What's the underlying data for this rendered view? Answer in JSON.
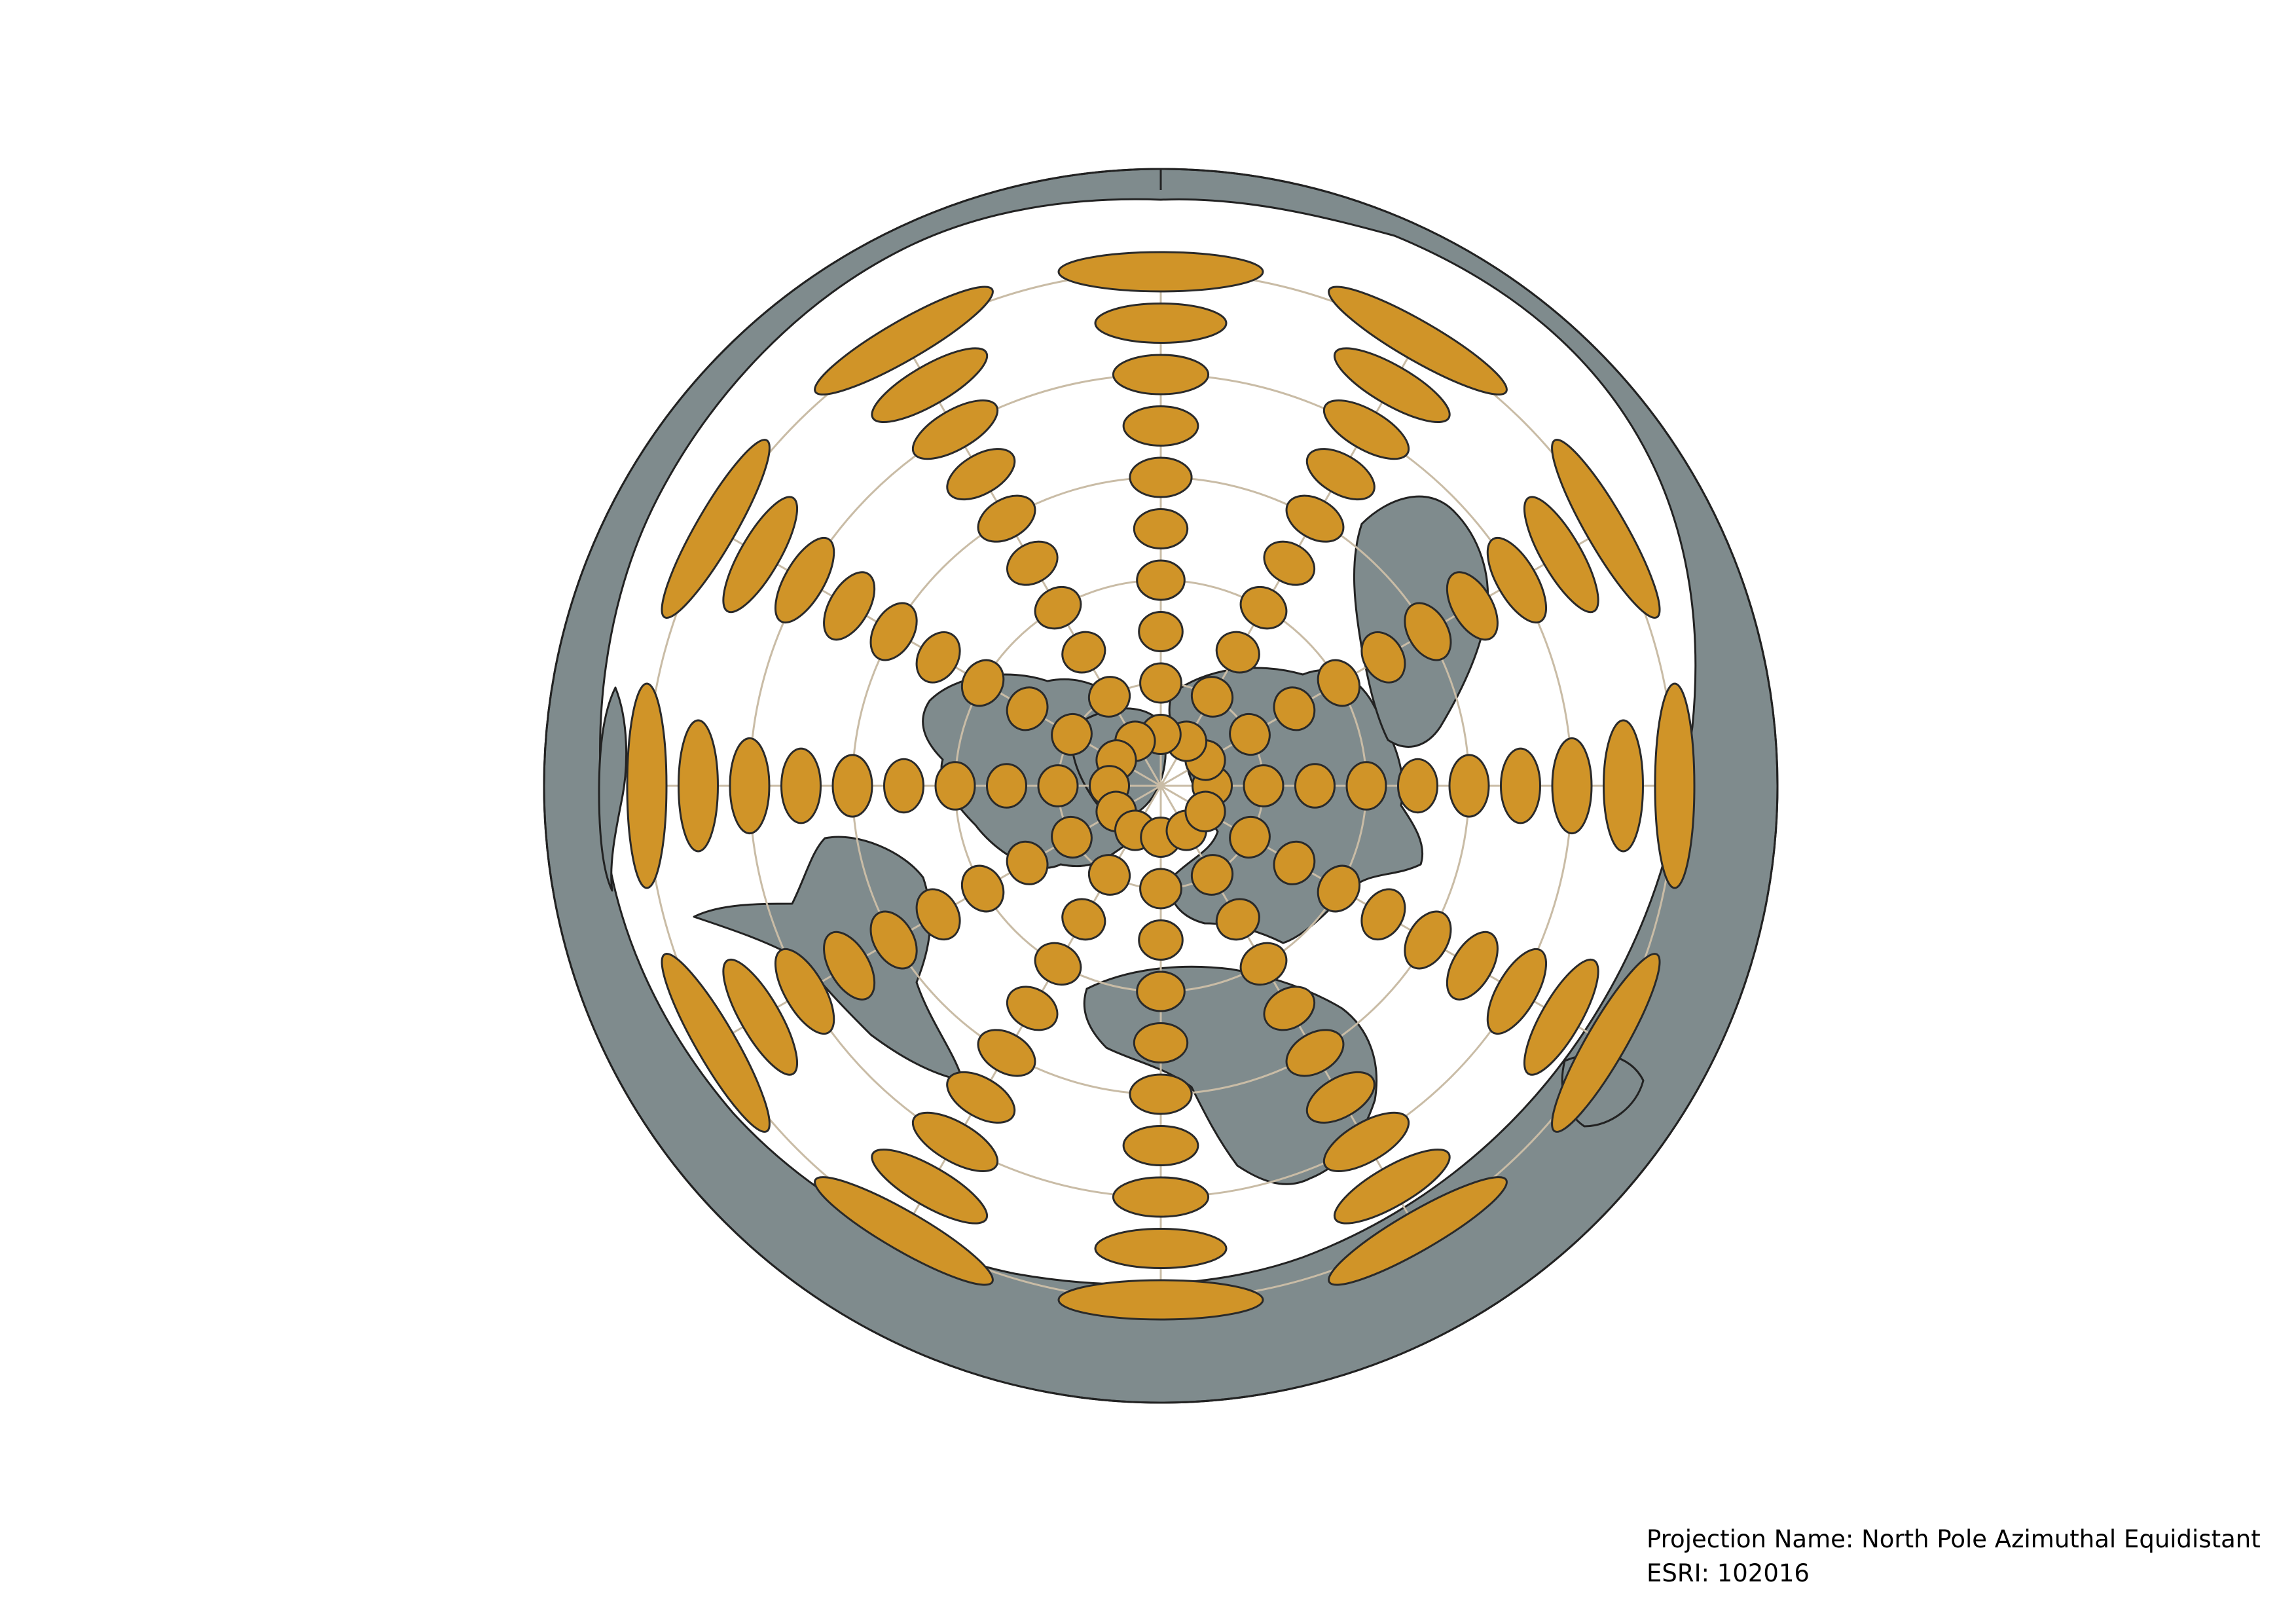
{
  "caption": {
    "projection_line": "Projection Name: North Pole Azimuthal Equidistant",
    "esri_line": "ESRI: 102016"
  },
  "map": {
    "projection": "North Pole Azimuthal Equidistant",
    "esri_code": "102016",
    "colors": {
      "background": "#ffffff",
      "land": "#7f8b8d",
      "coastline": "#222222",
      "graticule": "#c9bca6",
      "indicatrix_fill": "#d09428",
      "indicatrix_stroke": "#2a2a2a"
    },
    "graticule": {
      "latitude_circles_deg": [
        60,
        30,
        0,
        -30,
        -60
      ],
      "meridian_step_deg": 30
    },
    "indicatrix": {
      "latitudes_deg": [
        75,
        60,
        45,
        30,
        15,
        0,
        -15,
        -30,
        -45,
        -60
      ],
      "meridian_step_deg": 30,
      "shape": "Tissot ellipses"
    },
    "icons": [
      "tissot-ellipse-icon",
      "land-mass-icon"
    ]
  }
}
